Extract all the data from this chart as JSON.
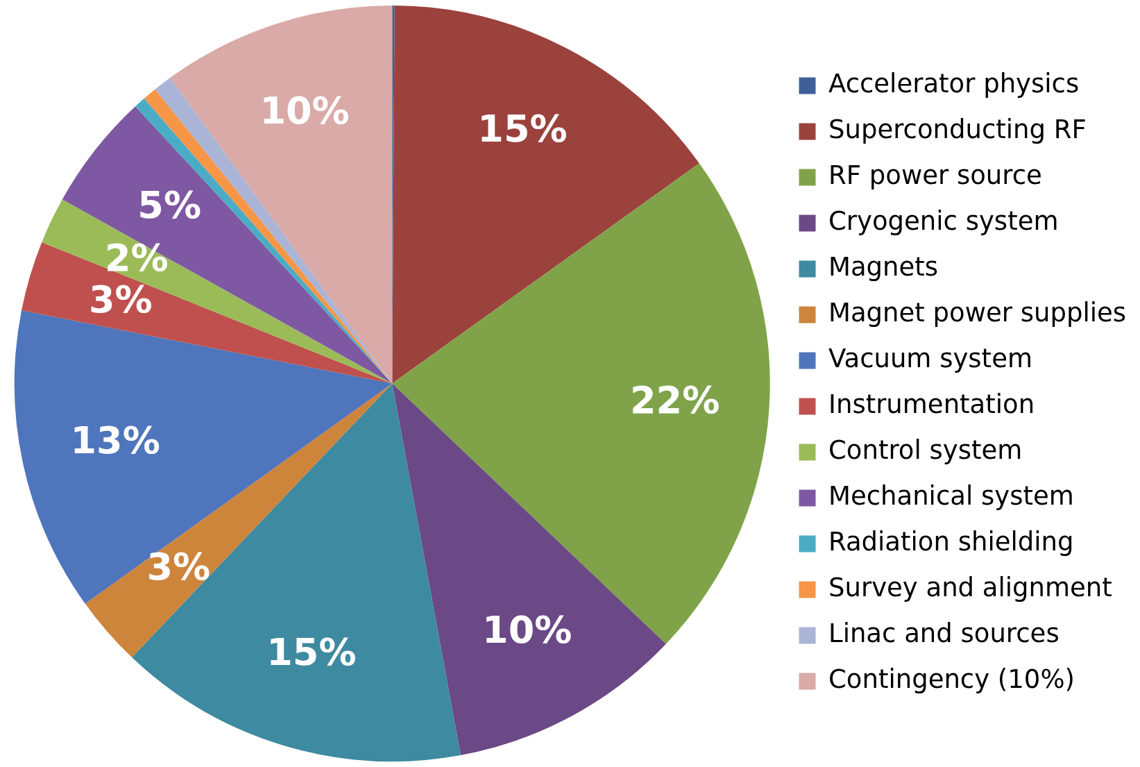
{
  "chart_data": {
    "type": "pie",
    "categories": [
      "Accelerator physics",
      "Superconducting RF",
      "RF power source",
      "Cryogenic system",
      "Magnets",
      "Magnet power supplies",
      "Vacuum system",
      "Instrumentation",
      "Control system",
      "Mechanical system",
      "Radiation shielding",
      "Survey and alignment",
      "Linac and sources",
      "Contingency (10%)"
    ],
    "values": [
      0.1,
      15,
      22,
      10,
      15,
      3,
      13,
      3,
      2,
      5,
      0.5,
      0.6,
      0.8,
      10
    ],
    "colors": [
      "#3f5f9a",
      "#9b423d",
      "#80a34a",
      "#6b4886",
      "#3e8aa0",
      "#cd843b",
      "#4f75bc",
      "#c0504d",
      "#9bbb59",
      "#7f58a3",
      "#4bacc6",
      "#f79646",
      "#aab4d6",
      "#d9aaa7"
    ],
    "value_labels": [
      null,
      "15%",
      "22%",
      "10%",
      "15%",
      "3%",
      "13%",
      "3%",
      "2%",
      "5%",
      null,
      null,
      null,
      "10%"
    ],
    "legend": "right"
  }
}
